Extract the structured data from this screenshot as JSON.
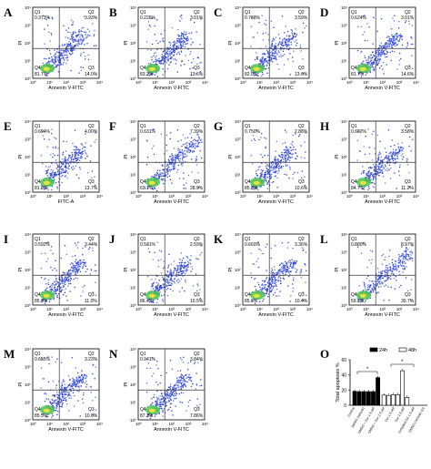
{
  "figure": {
    "flow_panels": [
      {
        "letter": "A",
        "xlabel": "Annexin V-FITC",
        "q1": "0.373%",
        "q2": "3.93%",
        "q3": "14.0%",
        "q4": "81.7%"
      },
      {
        "letter": "B",
        "xlabel": "Annexin V-FITC",
        "q1": "0.226%",
        "q2": "3.01%",
        "q3": "13.6%",
        "q4": "83.2%"
      },
      {
        "letter": "C",
        "xlabel": "Annexin V-FITC",
        "q1": "0.768%",
        "q2": "3.59%",
        "q3": "13.6%",
        "q4": "82.0%"
      },
      {
        "letter": "D",
        "xlabel": "Annexin V-FITC",
        "q1": "0.624%",
        "q2": "3.01%",
        "q3": "14.6%",
        "q4": "81.7%"
      },
      {
        "letter": "E",
        "xlabel": "FITC-A",
        "q1": "0.694%",
        "q2": "4.00%",
        "q3": "13.7%",
        "q4": "81.6%"
      },
      {
        "letter": "F",
        "xlabel": "Annexin V-FITC",
        "q1": "0.631%",
        "q2": "7.39%",
        "q3": "28.9%",
        "q4": "63.1%"
      },
      {
        "letter": "G",
        "xlabel": "Annexin V-FITC",
        "q1": "0.750%",
        "q2": "2.88%",
        "q3": "10.6%",
        "q4": "85.8%"
      },
      {
        "letter": "H",
        "xlabel": "Annexin V-FITC",
        "q1": "0.602%",
        "q2": "3.58%",
        "q3": "11.2%",
        "q4": "84.7%"
      },
      {
        "letter": "I",
        "xlabel": "Annexin V-FITC",
        "q1": "0.592%",
        "q2": "3.44%",
        "q3": "11.0%",
        "q4": "85.0%"
      },
      {
        "letter": "J",
        "xlabel": "Annexin V-FITC",
        "q1": "0.531%",
        "q2": "2.59%",
        "q3": "10.5%",
        "q4": "86.4%"
      },
      {
        "letter": "K",
        "xlabel": "Annexin V-FITC",
        "q1": "0.660%",
        "q2": "3.36%",
        "q3": "10.4%",
        "q4": "85.6%"
      },
      {
        "letter": "L",
        "xlabel": "Annexin V-FITC",
        "q1": "0.880%",
        "q2": "8.97%",
        "q3": "30.7%",
        "q4": "59.5%"
      },
      {
        "letter": "M",
        "xlabel": "Annexin V-FITC",
        "q1": "0.655%",
        "q2": "3.23%",
        "q3": "10.6%",
        "q4": "85.5%"
      },
      {
        "letter": "N",
        "xlabel": "Annexin V-FITC",
        "q1": "0.941%",
        "q2": "3.84%",
        "q3": "7.86%",
        "q4": "87.3%"
      }
    ],
    "flow_common": {
      "ylabel": "PI",
      "q_names": [
        "Q1",
        "Q2",
        "Q3",
        "Q4"
      ],
      "tick_labels": [
        "10⁰",
        "10¹",
        "10²",
        "10³",
        "10⁴"
      ],
      "colors": {
        "scatter_blue": "#2b3fd6",
        "scatter_light": "#5a72e8",
        "core_green": "#4cc64c",
        "core_yellow": "#e8e23a",
        "axis": "#000000"
      }
    },
    "bar_panel": {
      "letter": "O"
    }
  },
  "chart_data": {
    "type": "bar",
    "ylabel": "Total apoptosis %",
    "ylim": [
      0,
      60
    ],
    "yticks": [
      0,
      20,
      40,
      60
    ],
    "categories": [
      "Control",
      "DMSO (vehicle)",
      "DMSO + Cur 1.5 μM",
      "DMSO + Cur 2.5 μM",
      "Cur 1.5 μM",
      "Cur 2.5 μM",
      "Unfolded (U) 1.5 μM",
      "DMSO (vehicle) (U)"
    ],
    "series": [
      {
        "name": "24h",
        "color": "#000000",
        "values": [
          18.5,
          18.0,
          18.0,
          18.0,
          18.0,
          36.5,
          0,
          0
        ]
      },
      {
        "name": "48h",
        "color": "#ffffff",
        "values": [
          0,
          0,
          13.5,
          13.0,
          14.0,
          14.0,
          45.5,
          10.5
        ]
      }
    ],
    "significance": [
      "*",
      "*"
    ],
    "legend_position": "top"
  }
}
